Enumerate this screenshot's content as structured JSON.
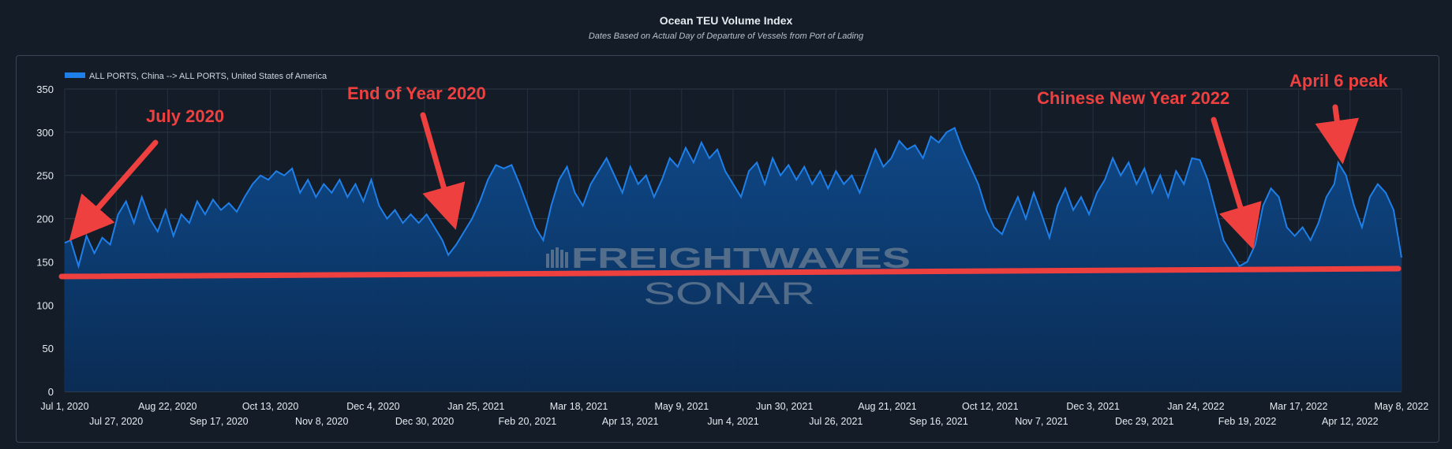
{
  "colors": {
    "background": "#131c27",
    "series_line": "#1f7fe8",
    "series_fill": "#0d3f78",
    "annotation": "#ef4040",
    "watermark": "#6b7f95"
  },
  "watermark": {
    "line1": "FREIGHTWAVES",
    "line2": "SONAR"
  },
  "annotations": [
    {
      "text": "July 2020"
    },
    {
      "text": "End of Year 2020"
    },
    {
      "text": "Chinese New Year 2022"
    },
    {
      "text": "April 6 peak"
    }
  ],
  "chart_data": {
    "type": "area",
    "title": "Ocean TEU Volume Index",
    "subtitle": "Dates Based on Actual Day of Departure of Vessels from Port of Lading",
    "xlabel": "",
    "ylabel": "",
    "ylim": [
      0,
      350
    ],
    "yticks": [
      0,
      50,
      100,
      150,
      200,
      250,
      300,
      350
    ],
    "xlim": [
      "2020-07-01",
      "2022-05-08"
    ],
    "xticks_top": [
      "Jul 1, 2020",
      "Aug 22, 2020",
      "Oct 13, 2020",
      "Dec 4, 2020",
      "Jan 25, 2021",
      "Mar 18, 2021",
      "May 9, 2021",
      "Jun 30, 2021",
      "Aug 21, 2021",
      "Oct 12, 2021",
      "Dec 3, 2021",
      "Jan 24, 2022",
      "Mar 17, 2022",
      "May 8, 2022"
    ],
    "xticks_bottom": [
      "Jul 27, 2020",
      "Sep 17, 2020",
      "Nov 8, 2020",
      "Dec 30, 2020",
      "Feb 20, 2021",
      "Apr 13, 2021",
      "Jun 4, 2021",
      "Jul 26, 2021",
      "Sep 16, 2021",
      "Nov 7, 2021",
      "Dec 29, 2021",
      "Feb 19, 2022",
      "Apr 12, 2022"
    ],
    "grid": true,
    "legend_position": "top-left",
    "series": [
      {
        "name": "ALL PORTS, China --> ALL PORTS, United States of America",
        "points": [
          [
            "2020-07-01",
            172
          ],
          [
            "2020-07-04",
            175
          ],
          [
            "2020-07-08",
            145
          ],
          [
            "2020-07-12",
            180
          ],
          [
            "2020-07-16",
            160
          ],
          [
            "2020-07-20",
            178
          ],
          [
            "2020-07-24",
            170
          ],
          [
            "2020-07-28",
            205
          ],
          [
            "2020-08-01",
            220
          ],
          [
            "2020-08-05",
            195
          ],
          [
            "2020-08-09",
            225
          ],
          [
            "2020-08-13",
            200
          ],
          [
            "2020-08-17",
            185
          ],
          [
            "2020-08-21",
            210
          ],
          [
            "2020-08-25",
            180
          ],
          [
            "2020-08-29",
            205
          ],
          [
            "2020-09-02",
            195
          ],
          [
            "2020-09-06",
            220
          ],
          [
            "2020-09-10",
            205
          ],
          [
            "2020-09-14",
            222
          ],
          [
            "2020-09-18",
            210
          ],
          [
            "2020-09-22",
            218
          ],
          [
            "2020-09-26",
            208
          ],
          [
            "2020-09-30",
            225
          ],
          [
            "2020-10-04",
            240
          ],
          [
            "2020-10-08",
            250
          ],
          [
            "2020-10-12",
            245
          ],
          [
            "2020-10-16",
            255
          ],
          [
            "2020-10-20",
            250
          ],
          [
            "2020-10-24",
            258
          ],
          [
            "2020-10-28",
            230
          ],
          [
            "2020-11-01",
            245
          ],
          [
            "2020-11-05",
            225
          ],
          [
            "2020-11-09",
            240
          ],
          [
            "2020-11-13",
            230
          ],
          [
            "2020-11-17",
            245
          ],
          [
            "2020-11-21",
            225
          ],
          [
            "2020-11-25",
            240
          ],
          [
            "2020-11-29",
            220
          ],
          [
            "2020-12-03",
            245
          ],
          [
            "2020-12-07",
            215
          ],
          [
            "2020-12-11",
            200
          ],
          [
            "2020-12-15",
            210
          ],
          [
            "2020-12-19",
            195
          ],
          [
            "2020-12-23",
            205
          ],
          [
            "2020-12-27",
            195
          ],
          [
            "2020-12-31",
            205
          ],
          [
            "2021-01-04",
            190
          ],
          [
            "2021-01-08",
            175
          ],
          [
            "2021-01-11",
            158
          ],
          [
            "2021-01-15",
            170
          ],
          [
            "2021-01-19",
            185
          ],
          [
            "2021-01-23",
            200
          ],
          [
            "2021-01-27",
            220
          ],
          [
            "2021-01-31",
            245
          ],
          [
            "2021-02-04",
            262
          ],
          [
            "2021-02-08",
            258
          ],
          [
            "2021-02-12",
            262
          ],
          [
            "2021-02-16",
            240
          ],
          [
            "2021-02-20",
            215
          ],
          [
            "2021-02-24",
            190
          ],
          [
            "2021-02-28",
            175
          ],
          [
            "2021-03-04",
            215
          ],
          [
            "2021-03-08",
            245
          ],
          [
            "2021-03-12",
            260
          ],
          [
            "2021-03-16",
            230
          ],
          [
            "2021-03-20",
            215
          ],
          [
            "2021-03-24",
            240
          ],
          [
            "2021-03-28",
            255
          ],
          [
            "2021-04-01",
            270
          ],
          [
            "2021-04-05",
            250
          ],
          [
            "2021-04-09",
            230
          ],
          [
            "2021-04-13",
            260
          ],
          [
            "2021-04-17",
            240
          ],
          [
            "2021-04-21",
            250
          ],
          [
            "2021-04-25",
            225
          ],
          [
            "2021-04-29",
            245
          ],
          [
            "2021-05-03",
            270
          ],
          [
            "2021-05-07",
            260
          ],
          [
            "2021-05-11",
            282
          ],
          [
            "2021-05-15",
            265
          ],
          [
            "2021-05-19",
            288
          ],
          [
            "2021-05-23",
            270
          ],
          [
            "2021-05-27",
            280
          ],
          [
            "2021-05-31",
            255
          ],
          [
            "2021-06-04",
            240
          ],
          [
            "2021-06-08",
            225
          ],
          [
            "2021-06-12",
            255
          ],
          [
            "2021-06-16",
            265
          ],
          [
            "2021-06-20",
            240
          ],
          [
            "2021-06-24",
            270
          ],
          [
            "2021-06-28",
            250
          ],
          [
            "2021-07-02",
            262
          ],
          [
            "2021-07-06",
            245
          ],
          [
            "2021-07-10",
            260
          ],
          [
            "2021-07-14",
            240
          ],
          [
            "2021-07-18",
            255
          ],
          [
            "2021-07-22",
            235
          ],
          [
            "2021-07-26",
            255
          ],
          [
            "2021-07-30",
            240
          ],
          [
            "2021-08-03",
            250
          ],
          [
            "2021-08-07",
            230
          ],
          [
            "2021-08-11",
            255
          ],
          [
            "2021-08-15",
            280
          ],
          [
            "2021-08-19",
            260
          ],
          [
            "2021-08-23",
            270
          ],
          [
            "2021-08-27",
            290
          ],
          [
            "2021-08-31",
            280
          ],
          [
            "2021-09-04",
            285
          ],
          [
            "2021-09-08",
            270
          ],
          [
            "2021-09-12",
            295
          ],
          [
            "2021-09-16",
            288
          ],
          [
            "2021-09-20",
            300
          ],
          [
            "2021-09-24",
            305
          ],
          [
            "2021-09-28",
            280
          ],
          [
            "2021-10-02",
            260
          ],
          [
            "2021-10-06",
            240
          ],
          [
            "2021-10-10",
            210
          ],
          [
            "2021-10-14",
            190
          ],
          [
            "2021-10-18",
            182
          ],
          [
            "2021-10-22",
            205
          ],
          [
            "2021-10-26",
            225
          ],
          [
            "2021-10-30",
            200
          ],
          [
            "2021-11-03",
            230
          ],
          [
            "2021-11-07",
            205
          ],
          [
            "2021-11-11",
            178
          ],
          [
            "2021-11-15",
            215
          ],
          [
            "2021-11-19",
            235
          ],
          [
            "2021-11-23",
            210
          ],
          [
            "2021-11-27",
            225
          ],
          [
            "2021-12-01",
            205
          ],
          [
            "2021-12-05",
            230
          ],
          [
            "2021-12-09",
            245
          ],
          [
            "2021-12-13",
            270
          ],
          [
            "2021-12-17",
            250
          ],
          [
            "2021-12-21",
            265
          ],
          [
            "2021-12-25",
            240
          ],
          [
            "2021-12-29",
            258
          ],
          [
            "2022-01-02",
            230
          ],
          [
            "2022-01-06",
            250
          ],
          [
            "2022-01-10",
            225
          ],
          [
            "2022-01-14",
            255
          ],
          [
            "2022-01-18",
            240
          ],
          [
            "2022-01-22",
            270
          ],
          [
            "2022-01-26",
            268
          ],
          [
            "2022-01-30",
            245
          ],
          [
            "2022-02-03",
            210
          ],
          [
            "2022-02-07",
            175
          ],
          [
            "2022-02-11",
            160
          ],
          [
            "2022-02-15",
            145
          ],
          [
            "2022-02-19",
            150
          ],
          [
            "2022-02-23",
            170
          ],
          [
            "2022-02-27",
            215
          ],
          [
            "2022-03-03",
            235
          ],
          [
            "2022-03-07",
            225
          ],
          [
            "2022-03-11",
            190
          ],
          [
            "2022-03-15",
            180
          ],
          [
            "2022-03-19",
            190
          ],
          [
            "2022-03-23",
            175
          ],
          [
            "2022-03-27",
            195
          ],
          [
            "2022-03-31",
            225
          ],
          [
            "2022-04-04",
            240
          ],
          [
            "2022-04-06",
            265
          ],
          [
            "2022-04-10",
            250
          ],
          [
            "2022-04-14",
            215
          ],
          [
            "2022-04-18",
            190
          ],
          [
            "2022-04-22",
            225
          ],
          [
            "2022-04-26",
            240
          ],
          [
            "2022-04-30",
            230
          ],
          [
            "2022-05-04",
            210
          ],
          [
            "2022-05-08",
            155
          ]
        ]
      }
    ]
  }
}
